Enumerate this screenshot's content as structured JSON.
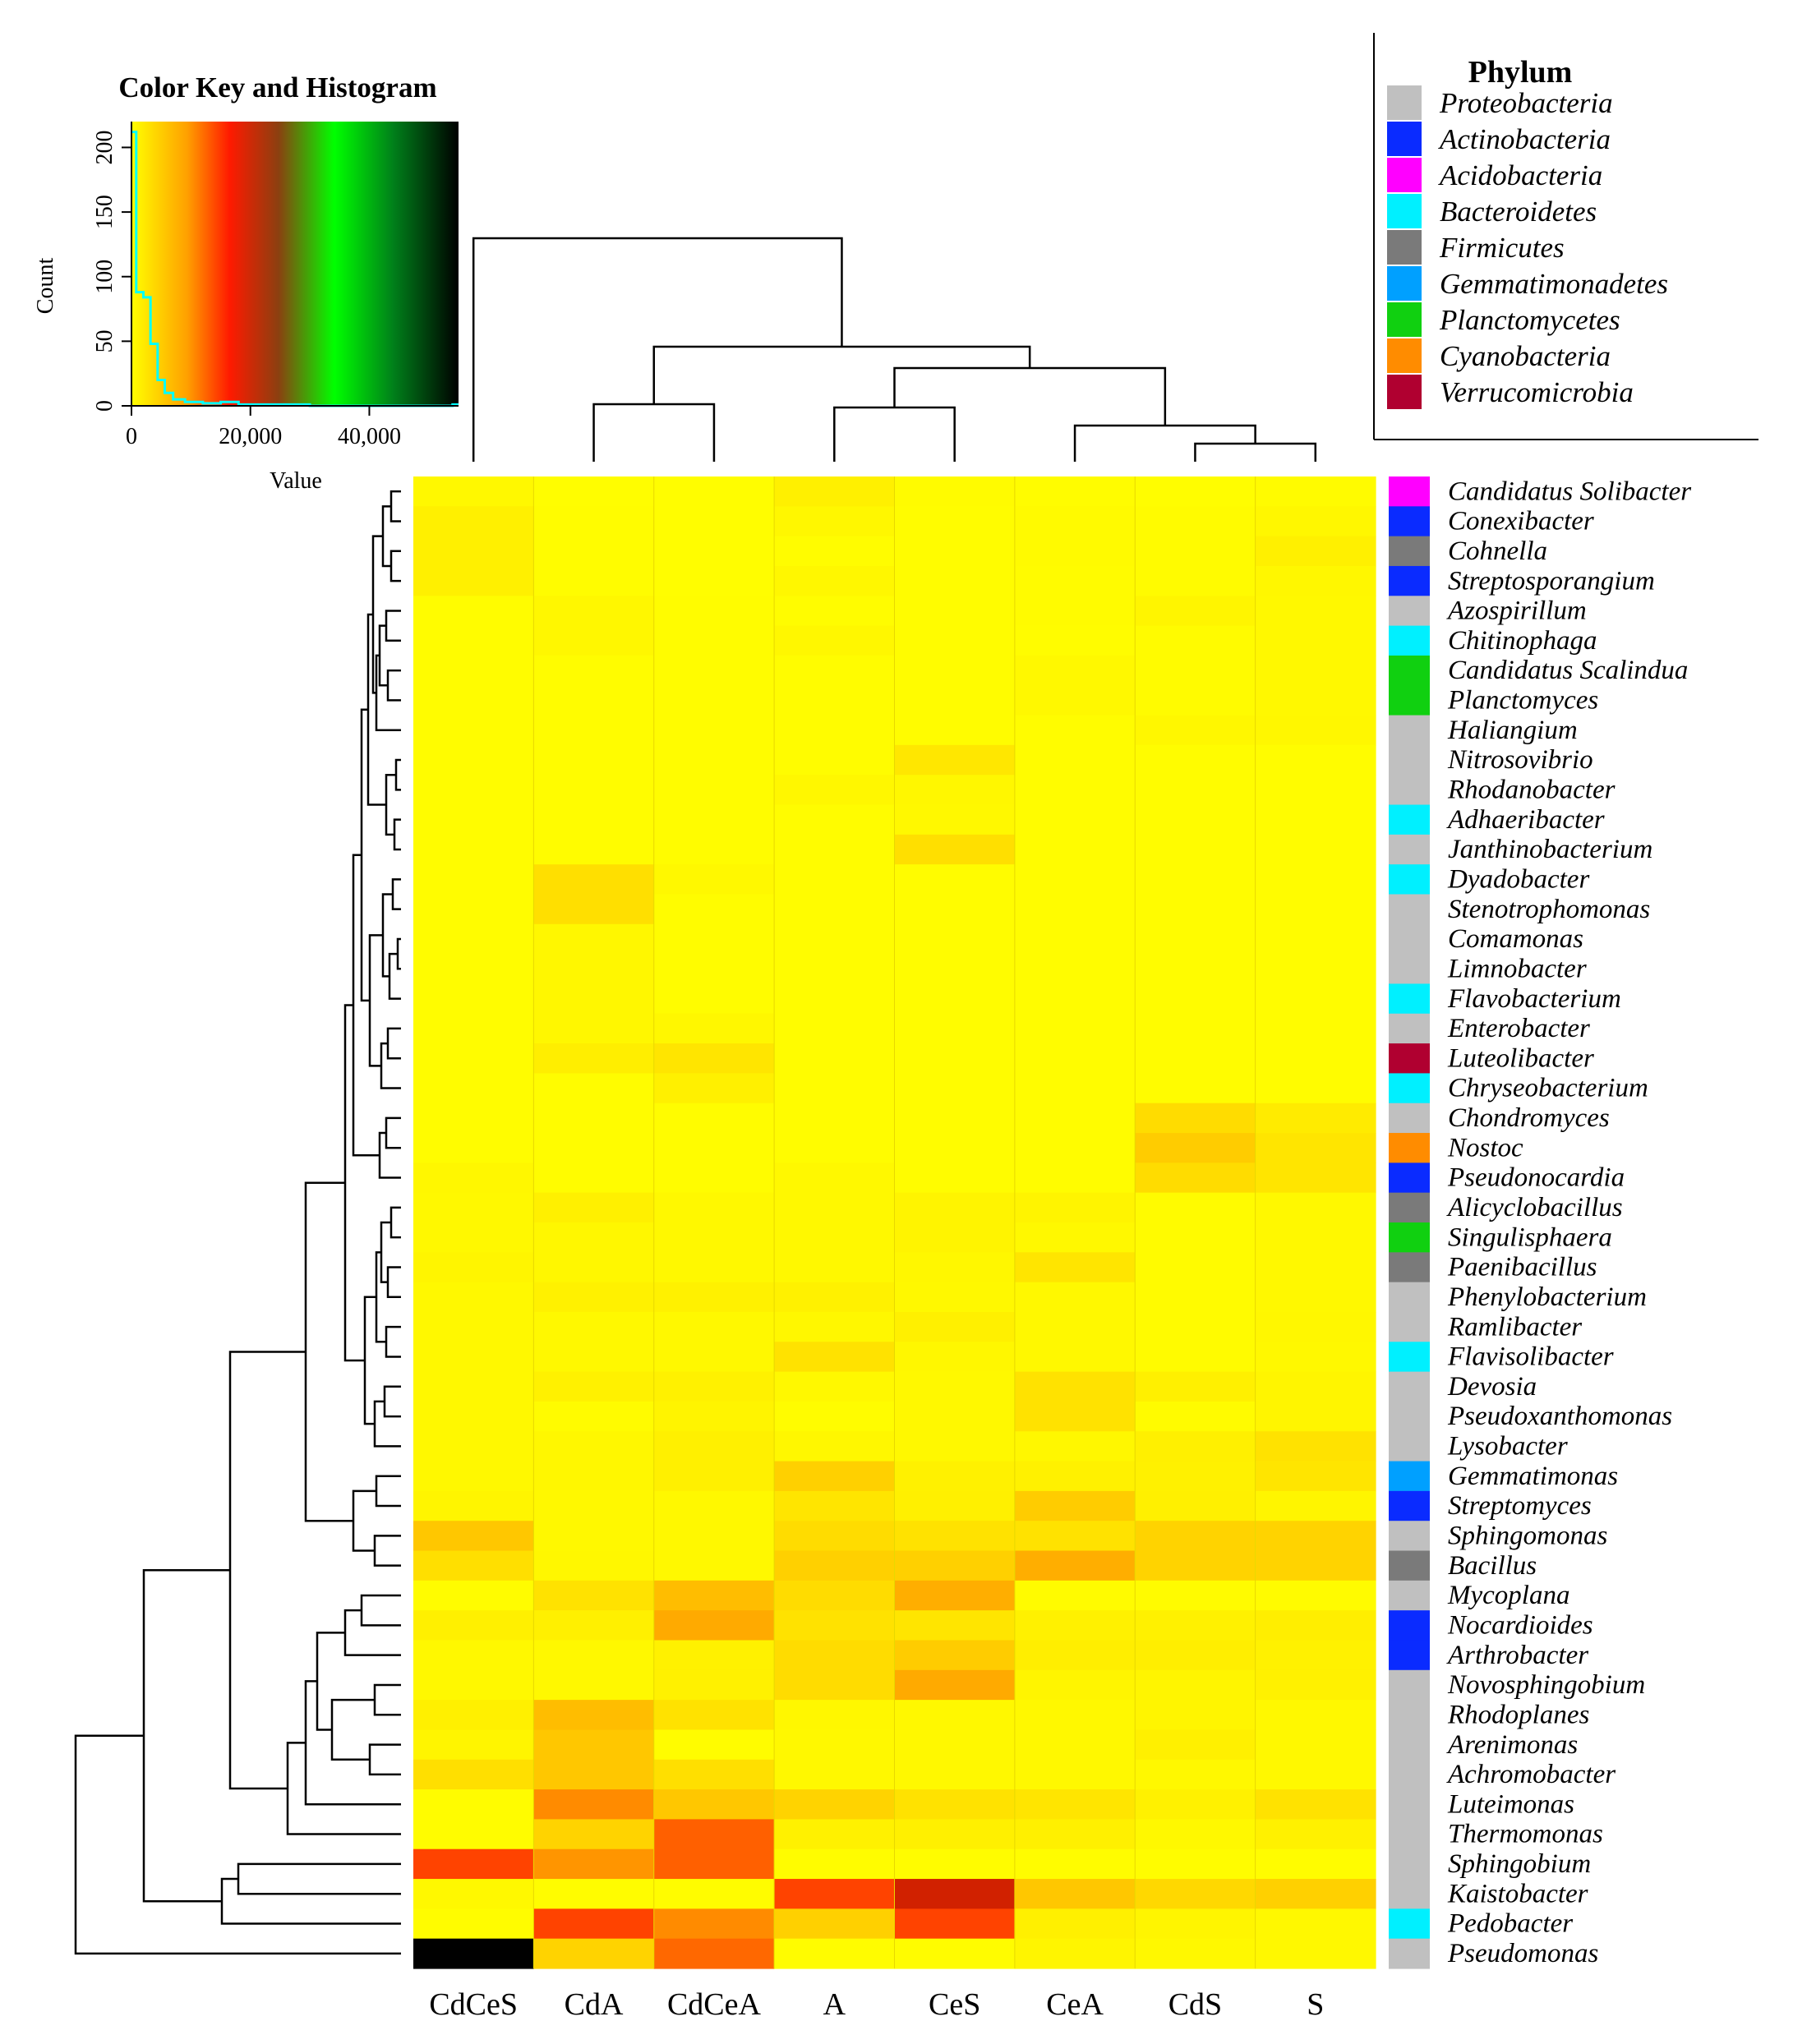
{
  "chart_data": {
    "type": "heatmap",
    "color_key": {
      "title": "Color Key and Histogram",
      "xlabel": "Value",
      "ylabel": "Count",
      "x_ticks": [
        "0",
        "20,000",
        "40,000"
      ],
      "x_tick_values": [
        0,
        20000,
        40000
      ],
      "y_ticks": [
        "0",
        "50",
        "100",
        "150",
        "200"
      ],
      "y_tick_values": [
        0,
        50,
        100,
        150,
        200
      ],
      "xlim": [
        0,
        55000
      ],
      "ylim": [
        0,
        220
      ],
      "gradient_colors": [
        "#ffff00",
        "#ff8c00",
        "#ff0000",
        "#8b3a10",
        "#00ff00",
        "#007a00",
        "#000000"
      ],
      "histogram_color": "#00ffff",
      "histogram_bins": [
        {
          "x": 0,
          "count": 212
        },
        {
          "x": 800,
          "count": 88
        },
        {
          "x": 2000,
          "count": 84
        },
        {
          "x": 3200,
          "count": 48
        },
        {
          "x": 4400,
          "count": 20
        },
        {
          "x": 5600,
          "count": 10
        },
        {
          "x": 7000,
          "count": 5
        },
        {
          "x": 9000,
          "count": 3
        },
        {
          "x": 12000,
          "count": 2
        },
        {
          "x": 15000,
          "count": 3
        },
        {
          "x": 18000,
          "count": 1
        },
        {
          "x": 22000,
          "count": 1
        },
        {
          "x": 30000,
          "count": 0
        },
        {
          "x": 54000,
          "count": 1
        }
      ]
    },
    "columns": [
      "CdCeS",
      "CdA",
      "CdCeA",
      "A",
      "CeS",
      "CeA",
      "CdS",
      "S"
    ],
    "rows": [
      "Candidatus Solibacter",
      "Conexibacter",
      "Cohnella",
      "Streptosporangium",
      "Azospirillum",
      "Chitinophaga",
      "Candidatus Scalindua",
      "Planctomyces",
      "Haliangium",
      "Nitrosovibrio",
      "Rhodanobacter",
      "Adhaeribacter",
      "Janthinobacterium",
      "Dyadobacter",
      "Stenotrophomonas",
      "Comamonas",
      "Limnobacter",
      "Flavobacterium",
      "Enterobacter",
      "Luteolibacter",
      "Chryseobacterium",
      "Chondromyces",
      "Nostoc",
      "Pseudonocardia",
      "Alicyclobacillus",
      "Singulisphaera",
      "Paenibacillus",
      "Phenylobacterium",
      "Ramlibacter",
      "Flavisolibacter",
      "Devosia",
      "Pseudoxanthomonas",
      "Lysobacter",
      "Gemmatimonas",
      "Streptomyces",
      "Sphingomonas",
      "Bacillus",
      "Mycoplana",
      "Nocardioides",
      "Arthrobacter",
      "Novosphingobium",
      "Rhodoplanes",
      "Arenimonas",
      "Achromobacter",
      "Luteimonas",
      "Thermomonas",
      "Sphingobium",
      "Kaistobacter",
      "Pedobacter",
      "Pseudomonas"
    ],
    "row_phylum": [
      "Acidobacteria",
      "Actinobacteria",
      "Firmicutes",
      "Actinobacteria",
      "Proteobacteria",
      "Bacteroidetes",
      "Planctomycetes",
      "Planctomycetes",
      "Proteobacteria",
      "Proteobacteria",
      "Proteobacteria",
      "Bacteroidetes",
      "Proteobacteria",
      "Bacteroidetes",
      "Proteobacteria",
      "Proteobacteria",
      "Proteobacteria",
      "Bacteroidetes",
      "Proteobacteria",
      "Verrucomicrobia",
      "Bacteroidetes",
      "Proteobacteria",
      "Cyanobacteria",
      "Actinobacteria",
      "Firmicutes",
      "Planctomycetes",
      "Firmicutes",
      "Proteobacteria",
      "Proteobacteria",
      "Bacteroidetes",
      "Proteobacteria",
      "Proteobacteria",
      "Proteobacteria",
      "Gemmatimonadetes",
      "Actinobacteria",
      "Proteobacteria",
      "Firmicutes",
      "Proteobacteria",
      "Actinobacteria",
      "Actinobacteria",
      "Proteobacteria",
      "Proteobacteria",
      "Proteobacteria",
      "Proteobacteria",
      "Proteobacteria",
      "Proteobacteria",
      "Proteobacteria",
      "Proteobacteria",
      "Bacteroidetes",
      "Proteobacteria"
    ],
    "values": [
      [
        800,
        200,
        200,
        1800,
        500,
        300,
        200,
        500
      ],
      [
        1800,
        300,
        200,
        1000,
        300,
        600,
        500,
        900
      ],
      [
        1800,
        300,
        200,
        400,
        300,
        600,
        500,
        1800
      ],
      [
        1800,
        300,
        200,
        1000,
        300,
        500,
        500,
        900
      ],
      [
        300,
        900,
        300,
        300,
        300,
        500,
        1200,
        800
      ],
      [
        300,
        900,
        300,
        1000,
        300,
        300,
        500,
        800
      ],
      [
        300,
        300,
        300,
        300,
        300,
        800,
        500,
        800
      ],
      [
        300,
        300,
        300,
        300,
        300,
        800,
        500,
        800
      ],
      [
        300,
        300,
        300,
        300,
        300,
        300,
        1000,
        1000
      ],
      [
        300,
        300,
        300,
        300,
        2500,
        300,
        300,
        300
      ],
      [
        300,
        300,
        300,
        1000,
        1000,
        300,
        300,
        300
      ],
      [
        300,
        300,
        300,
        300,
        800,
        300,
        300,
        300
      ],
      [
        300,
        300,
        300,
        300,
        3000,
        300,
        300,
        300
      ],
      [
        300,
        3000,
        800,
        300,
        300,
        300,
        300,
        300
      ],
      [
        300,
        3000,
        300,
        300,
        300,
        300,
        300,
        300
      ],
      [
        300,
        900,
        300,
        300,
        300,
        300,
        300,
        300
      ],
      [
        300,
        900,
        300,
        300,
        300,
        300,
        300,
        300
      ],
      [
        300,
        900,
        300,
        300,
        300,
        300,
        300,
        300
      ],
      [
        300,
        900,
        900,
        300,
        300,
        300,
        300,
        300
      ],
      [
        300,
        2000,
        2600,
        300,
        300,
        300,
        300,
        300
      ],
      [
        300,
        300,
        1800,
        300,
        300,
        300,
        300,
        300
      ],
      [
        300,
        300,
        300,
        300,
        300,
        300,
        3200,
        2200
      ],
      [
        300,
        300,
        300,
        300,
        300,
        300,
        4200,
        2600
      ],
      [
        900,
        300,
        300,
        800,
        300,
        300,
        3200,
        2600
      ],
      [
        800,
        1800,
        800,
        800,
        1300,
        1300,
        500,
        800
      ],
      [
        800,
        1000,
        800,
        800,
        1300,
        800,
        500,
        800
      ],
      [
        1200,
        1000,
        800,
        800,
        1000,
        2600,
        500,
        800
      ],
      [
        800,
        1600,
        1600,
        1600,
        800,
        800,
        500,
        800
      ],
      [
        800,
        800,
        800,
        1000,
        1800,
        800,
        500,
        1000
      ],
      [
        800,
        800,
        800,
        2800,
        1000,
        800,
        500,
        800
      ],
      [
        800,
        1600,
        1600,
        800,
        800,
        2800,
        1800,
        1200
      ],
      [
        800,
        500,
        1300,
        300,
        800,
        2800,
        500,
        1200
      ],
      [
        800,
        1000,
        1800,
        1000,
        800,
        1000,
        1800,
        2800
      ],
      [
        800,
        1000,
        1800,
        4000,
        1600,
        1600,
        1600,
        2600
      ],
      [
        1200,
        800,
        800,
        2600,
        1800,
        4200,
        1800,
        1200
      ],
      [
        4500,
        800,
        800,
        3200,
        2800,
        2800,
        3800,
        3800
      ],
      [
        3000,
        1000,
        800,
        4000,
        4000,
        5800,
        3800,
        3800
      ],
      [
        300,
        2800,
        5000,
        3200,
        5800,
        500,
        500,
        500
      ],
      [
        1800,
        1800,
        6000,
        2800,
        2600,
        1600,
        1600,
        2000
      ],
      [
        800,
        800,
        1600,
        3200,
        4200,
        2000,
        2000,
        1600
      ],
      [
        800,
        800,
        1600,
        3200,
        6000,
        1200,
        1200,
        1600
      ],
      [
        1800,
        5000,
        2800,
        1000,
        800,
        800,
        1200,
        800
      ],
      [
        1200,
        4500,
        300,
        800,
        800,
        800,
        1800,
        800
      ],
      [
        3000,
        4500,
        3000,
        800,
        800,
        800,
        800,
        800
      ],
      [
        300,
        7500,
        4500,
        3800,
        2800,
        2600,
        1600,
        2800
      ],
      [
        300,
        3800,
        10000,
        1600,
        1800,
        1800,
        800,
        1600
      ],
      [
        12000,
        7000,
        10000,
        300,
        300,
        300,
        300,
        300
      ],
      [
        800,
        300,
        300,
        12000,
        16500,
        4500,
        3500,
        4000
      ],
      [
        300,
        12000,
        7500,
        4000,
        12000,
        1800,
        1200,
        800
      ],
      [
        54000,
        3800,
        9500,
        300,
        300,
        1200,
        800,
        800
      ]
    ],
    "column_dendrogram": "((CdCeS,((CdA,CdCeA),((A,CeS),(CeA,(CdS,S))))))",
    "row_dendrogram": "hierarchical clustering of genera"
  },
  "legend": {
    "title": "Phylum",
    "items": [
      {
        "label": "Proteobacteria",
        "color": "#c0c0c0"
      },
      {
        "label": "Actinobacteria",
        "color": "#0a2bff"
      },
      {
        "label": "Acidobacteria",
        "color": "#ff00ff"
      },
      {
        "label": "Bacteroidetes",
        "color": "#00f0ff"
      },
      {
        "label": "Firmicutes",
        "color": "#7a7a7a"
      },
      {
        "label": "Gemmatimonadetes",
        "color": "#00a0ff"
      },
      {
        "label": "Planctomycetes",
        "color": "#10d010"
      },
      {
        "label": "Cyanobacteria",
        "color": "#ff8c00"
      },
      {
        "label": "Verrucomicrobia",
        "color": "#b00030"
      }
    ]
  }
}
